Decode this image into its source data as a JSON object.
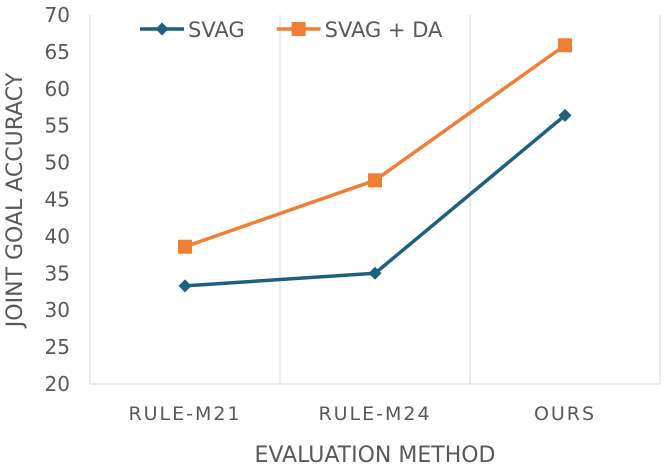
{
  "chart_data": {
    "type": "line",
    "title": "",
    "xlabel": "EVALUATION METHOD",
    "ylabel": "JOINT GOAL ACCURACY",
    "categories": [
      "RULE-M21",
      "RULE-M24",
      "OURS"
    ],
    "ylim": [
      20,
      70
    ],
    "yticks": [
      20,
      25,
      30,
      35,
      40,
      45,
      50,
      55,
      60,
      65,
      70
    ],
    "grid": "vertical",
    "legend_position": "top-left",
    "series": [
      {
        "name": "SVAG",
        "values": [
          33.3,
          35.0,
          56.4
        ],
        "color": "#1f5f7f",
        "marker": "diamond"
      },
      {
        "name": "SVAG + DA",
        "values": [
          38.6,
          47.6,
          65.9
        ],
        "color": "#f07f35",
        "marker": "square"
      }
    ],
    "colors": {
      "axis": "#d9d9d9",
      "grid": "#d9d9d9",
      "text": "#595959"
    }
  }
}
